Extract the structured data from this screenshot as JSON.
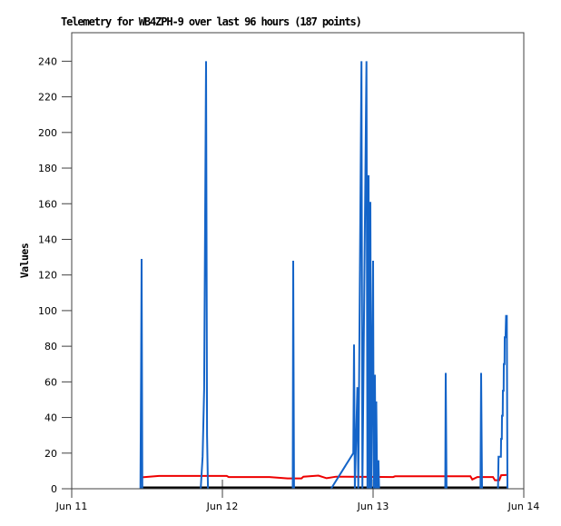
{
  "colors": {
    "background": "#ffffff",
    "axis": "#404040",
    "text": "#000000",
    "blue_series": "#1464c8",
    "red_series": "#ee0000",
    "black_series": "#000000"
  },
  "chart_data": {
    "type": "line",
    "title": "Telemetry for WB4ZPH-9 over last 96 hours (187 points)",
    "ylabel": "Values",
    "xlabel": "",
    "grid": false,
    "legend": false,
    "x_axis": {
      "unit": "hours since Jun 11 00:00",
      "range": [
        0,
        72
      ],
      "ticks": [
        {
          "hours": 0,
          "label": "Jun 11"
        },
        {
          "hours": 24,
          "label": "Jun 12"
        },
        {
          "hours": 48,
          "label": "Jun 13"
        },
        {
          "hours": 72,
          "label": "Jun 14"
        }
      ]
    },
    "y_axis": {
      "range": [
        0,
        256
      ],
      "ticks": [
        0,
        20,
        40,
        60,
        80,
        100,
        120,
        140,
        160,
        180,
        200,
        220,
        240
      ]
    },
    "series": [
      {
        "name": "black-series",
        "color_key": "black_series",
        "stroke_width": 3,
        "segments": [
          [
            [
              11.0,
              0.5
            ],
            [
              69.5,
              0.5
            ]
          ]
        ]
      },
      {
        "name": "red-series",
        "color_key": "red_series",
        "stroke_width": 2,
        "segments": [
          [
            [
              11.0,
              6.4
            ],
            [
              13.9,
              7.2
            ],
            [
              24.7,
              7.2
            ],
            [
              25.0,
              6.6
            ],
            [
              31.5,
              6.6
            ],
            [
              34.4,
              5.8
            ],
            [
              36.6,
              5.8
            ],
            [
              36.9,
              6.8
            ],
            [
              39.3,
              7.4
            ],
            [
              40.6,
              5.9
            ],
            [
              42.1,
              6.8
            ],
            [
              51.2,
              6.6
            ],
            [
              51.5,
              7.0
            ],
            [
              63.5,
              7.0
            ],
            [
              63.8,
              5.2
            ],
            [
              64.6,
              6.6
            ],
            [
              67.1,
              6.6
            ],
            [
              67.4,
              4.8
            ],
            [
              68.1,
              4.8
            ],
            [
              68.4,
              7.6
            ],
            [
              69.5,
              7.8
            ]
          ]
        ]
      },
      {
        "name": "blue-series",
        "color_key": "blue_series",
        "stroke_width": 2,
        "segments": [
          [
            [
              10.95,
              0
            ],
            [
              11.05,
              64
            ],
            [
              11.13,
              129
            ],
            [
              11.25,
              0
            ]
          ],
          [
            [
              20.55,
              0
            ],
            [
              20.85,
              18
            ],
            [
              21.1,
              56
            ],
            [
              21.4,
              240
            ],
            [
              21.55,
              30
            ],
            [
              21.7,
              0
            ]
          ],
          [
            [
              35.2,
              0
            ],
            [
              35.28,
              128
            ],
            [
              35.4,
              0
            ]
          ],
          [
            [
              41.3,
              0
            ],
            [
              44.85,
              20
            ],
            [
              44.96,
              81
            ],
            [
              45.1,
              0
            ],
            [
              45.5,
              57
            ],
            [
              45.65,
              0
            ],
            [
              46.15,
              240
            ],
            [
              46.3,
              0
            ],
            [
              46.95,
              240
            ],
            [
              47.1,
              0
            ],
            [
              47.28,
              176
            ],
            [
              47.4,
              0
            ],
            [
              47.57,
              161
            ],
            [
              47.7,
              0
            ],
            [
              48.0,
              128
            ],
            [
              48.1,
              0
            ],
            [
              48.29,
              64
            ],
            [
              48.4,
              0
            ],
            [
              48.51,
              49
            ],
            [
              48.65,
              0
            ],
            [
              48.85,
              16
            ],
            [
              48.95,
              0
            ]
          ],
          [
            [
              59.5,
              0
            ],
            [
              59.57,
              65
            ],
            [
              59.7,
              0
            ]
          ],
          [
            [
              65.1,
              0
            ],
            [
              65.2,
              65
            ],
            [
              65.35,
              0
            ]
          ],
          [
            [
              67.9,
              0
            ],
            [
              67.98,
              18
            ],
            [
              68.35,
              18
            ],
            [
              68.39,
              28
            ],
            [
              68.5,
              28
            ],
            [
              68.53,
              41
            ],
            [
              68.64,
              41
            ],
            [
              68.67,
              55
            ],
            [
              68.79,
              55
            ],
            [
              68.82,
              70
            ],
            [
              68.93,
              70
            ],
            [
              68.96,
              85
            ],
            [
              69.1,
              85
            ],
            [
              69.18,
              97
            ],
            [
              69.3,
              97
            ],
            [
              69.4,
              0
            ]
          ]
        ]
      }
    ]
  }
}
